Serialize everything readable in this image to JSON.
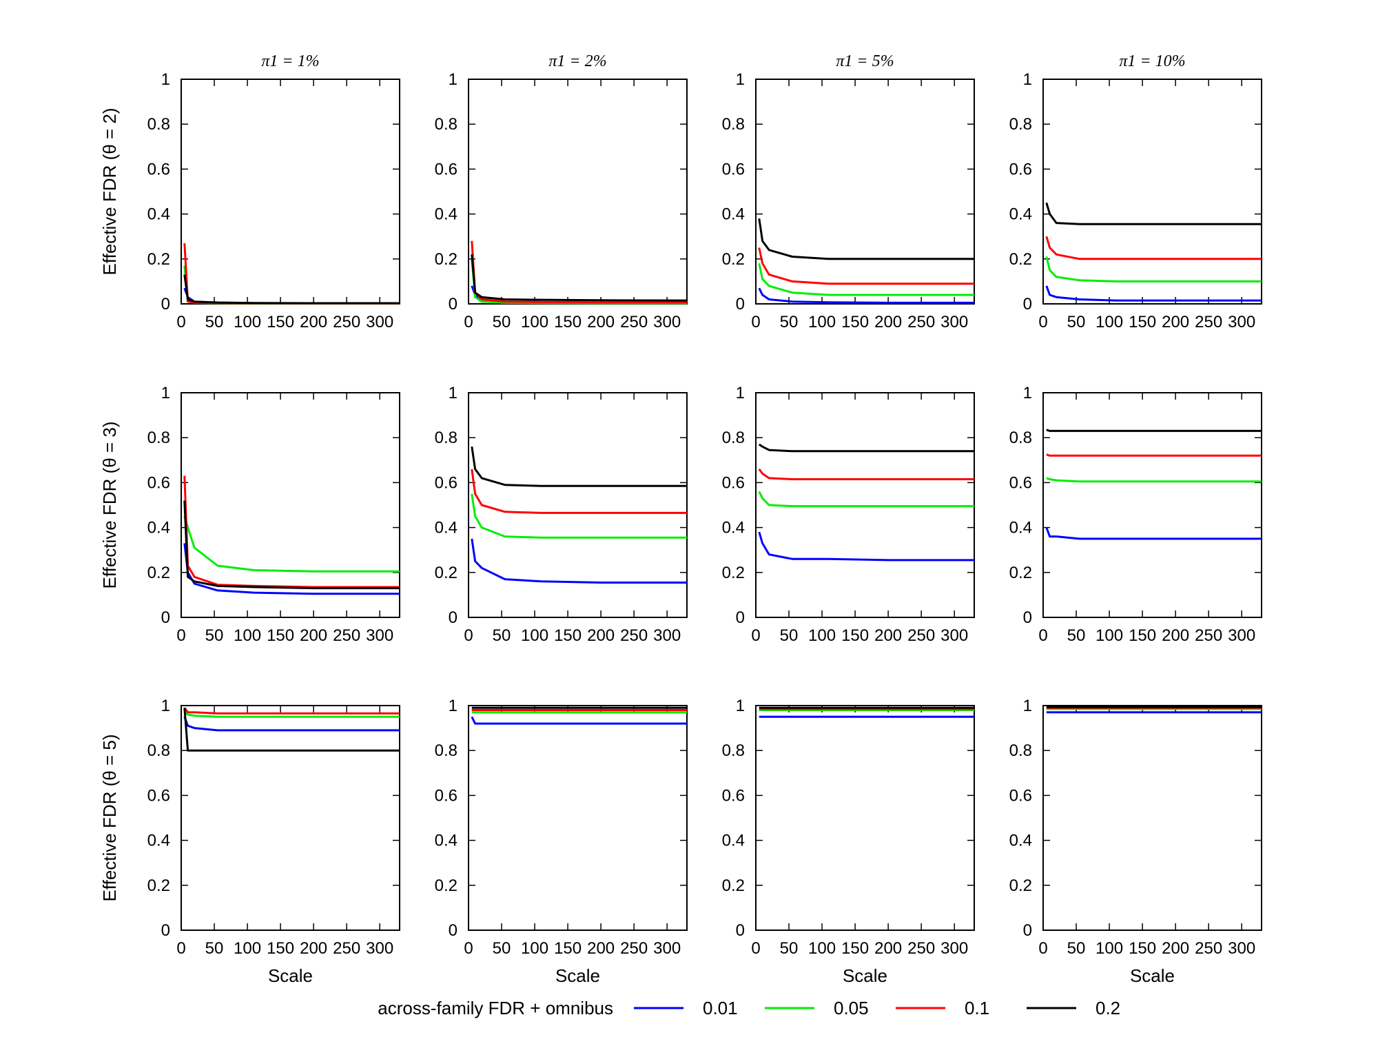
{
  "chart_data": {
    "type": "line",
    "layout": "grid 3 rows x 4 columns",
    "column_titles": [
      "π1 = 1%",
      "π1 = 2%",
      "π1 = 5%",
      "π1 = 10%"
    ],
    "row_ylabels": [
      "Effective FDR (θ = 2)",
      "Effective FDR (θ = 3)",
      "Effective FDR (θ = 5)"
    ],
    "xlabel": "Scale",
    "xlim": [
      0,
      330
    ],
    "ylim": [
      0,
      1
    ],
    "xticks": [
      "0",
      "50",
      "100",
      "150",
      "200",
      "250",
      "300"
    ],
    "yticks": [
      "0",
      "0.2",
      "0.4",
      "0.6",
      "0.8",
      "1"
    ],
    "legend": {
      "title": "across-family FDR + omnibus",
      "entries": [
        {
          "name": "0.01",
          "color": "#0000ff"
        },
        {
          "name": "0.05",
          "color": "#00ee00"
        },
        {
          "name": "0.1",
          "color": "#ff0000"
        },
        {
          "name": "0.2",
          "color": "#000000"
        }
      ]
    },
    "x": [
      5,
      10,
      20,
      55,
      110,
      200,
      330
    ],
    "panels": [
      {
        "row": 0,
        "col": 0,
        "series": [
          {
            "name": "0.01",
            "values": [
              0.07,
              0.03,
              0.01,
              0.005,
              0.003,
              0.002,
              0.002
            ]
          },
          {
            "name": "0.05",
            "values": [
              0.17,
              0.01,
              0.005,
              0.003,
              0.002,
              0.002,
              0.002
            ]
          },
          {
            "name": "0.1",
            "values": [
              0.27,
              0.01,
              0.005,
              0.004,
              0.003,
              0.002,
              0.002
            ]
          },
          {
            "name": "0.2",
            "values": [
              0.13,
              0.02,
              0.01,
              0.006,
              0.004,
              0.003,
              0.003
            ]
          }
        ]
      },
      {
        "row": 0,
        "col": 1,
        "series": [
          {
            "name": "0.01",
            "values": [
              0.08,
              0.04,
              0.02,
              0.01,
              0.008,
              0.006,
              0.006
            ]
          },
          {
            "name": "0.05",
            "values": [
              0.2,
              0.03,
              0.01,
              0.005,
              0.004,
              0.003,
              0.003
            ]
          },
          {
            "name": "0.1",
            "values": [
              0.28,
              0.05,
              0.02,
              0.01,
              0.008,
              0.007,
              0.007
            ]
          },
          {
            "name": "0.2",
            "values": [
              0.22,
              0.05,
              0.03,
              0.02,
              0.018,
              0.016,
              0.015
            ]
          }
        ]
      },
      {
        "row": 0,
        "col": 2,
        "series": [
          {
            "name": "0.01",
            "values": [
              0.07,
              0.04,
              0.02,
              0.01,
              0.007,
              0.005,
              0.005
            ]
          },
          {
            "name": "0.05",
            "values": [
              0.18,
              0.11,
              0.08,
              0.05,
              0.04,
              0.04,
              0.04
            ]
          },
          {
            "name": "0.1",
            "values": [
              0.25,
              0.18,
              0.13,
              0.1,
              0.09,
              0.09,
              0.09
            ]
          },
          {
            "name": "0.2",
            "values": [
              0.38,
              0.28,
              0.24,
              0.21,
              0.2,
              0.2,
              0.2
            ]
          }
        ]
      },
      {
        "row": 0,
        "col": 3,
        "series": [
          {
            "name": "0.01",
            "values": [
              0.08,
              0.04,
              0.03,
              0.02,
              0.015,
              0.015,
              0.015
            ]
          },
          {
            "name": "0.05",
            "values": [
              0.21,
              0.15,
              0.12,
              0.105,
              0.1,
              0.1,
              0.1
            ]
          },
          {
            "name": "0.1",
            "values": [
              0.3,
              0.25,
              0.22,
              0.2,
              0.2,
              0.2,
              0.2
            ]
          },
          {
            "name": "0.2",
            "values": [
              0.45,
              0.4,
              0.36,
              0.355,
              0.355,
              0.355,
              0.355
            ]
          }
        ]
      },
      {
        "row": 1,
        "col": 0,
        "series": [
          {
            "name": "0.01",
            "values": [
              0.33,
              0.2,
              0.15,
              0.12,
              0.11,
              0.105,
              0.105
            ]
          },
          {
            "name": "0.05",
            "values": [
              0.45,
              0.4,
              0.31,
              0.23,
              0.21,
              0.205,
              0.205
            ]
          },
          {
            "name": "0.1",
            "values": [
              0.63,
              0.23,
              0.18,
              0.145,
              0.14,
              0.135,
              0.135
            ]
          },
          {
            "name": "0.2",
            "values": [
              0.52,
              0.18,
              0.16,
              0.14,
              0.135,
              0.13,
              0.13
            ]
          }
        ]
      },
      {
        "row": 1,
        "col": 1,
        "series": [
          {
            "name": "0.01",
            "values": [
              0.35,
              0.25,
              0.22,
              0.17,
              0.16,
              0.155,
              0.155
            ]
          },
          {
            "name": "0.05",
            "values": [
              0.55,
              0.45,
              0.4,
              0.36,
              0.355,
              0.355,
              0.355
            ]
          },
          {
            "name": "0.1",
            "values": [
              0.66,
              0.55,
              0.5,
              0.47,
              0.465,
              0.465,
              0.465
            ]
          },
          {
            "name": "0.2",
            "values": [
              0.76,
              0.66,
              0.62,
              0.59,
              0.585,
              0.585,
              0.585
            ]
          }
        ]
      },
      {
        "row": 1,
        "col": 2,
        "series": [
          {
            "name": "0.01",
            "values": [
              0.38,
              0.33,
              0.28,
              0.26,
              0.26,
              0.255,
              0.255
            ]
          },
          {
            "name": "0.05",
            "values": [
              0.56,
              0.53,
              0.5,
              0.495,
              0.495,
              0.495,
              0.495
            ]
          },
          {
            "name": "0.1",
            "values": [
              0.66,
              0.64,
              0.62,
              0.615,
              0.615,
              0.615,
              0.615
            ]
          },
          {
            "name": "0.2",
            "values": [
              0.77,
              0.76,
              0.745,
              0.74,
              0.74,
              0.74,
              0.74
            ]
          }
        ]
      },
      {
        "row": 1,
        "col": 3,
        "series": [
          {
            "name": "0.01",
            "values": [
              0.4,
              0.36,
              0.36,
              0.35,
              0.35,
              0.35,
              0.35
            ]
          },
          {
            "name": "0.05",
            "values": [
              0.62,
              0.615,
              0.61,
              0.605,
              0.605,
              0.605,
              0.605
            ]
          },
          {
            "name": "0.1",
            "values": [
              0.725,
              0.72,
              0.72,
              0.72,
              0.72,
              0.72,
              0.72
            ]
          },
          {
            "name": "0.2",
            "values": [
              0.835,
              0.83,
              0.83,
              0.83,
              0.83,
              0.83,
              0.83
            ]
          }
        ]
      },
      {
        "row": 2,
        "col": 0,
        "series": [
          {
            "name": "0.01",
            "values": [
              0.95,
              0.91,
              0.9,
              0.89,
              0.89,
              0.89,
              0.89
            ]
          },
          {
            "name": "0.05",
            "values": [
              0.97,
              0.96,
              0.955,
              0.95,
              0.95,
              0.95,
              0.95
            ]
          },
          {
            "name": "0.1",
            "values": [
              0.99,
              0.97,
              0.97,
              0.965,
              0.965,
              0.965,
              0.965
            ]
          },
          {
            "name": "0.2",
            "values": [
              0.99,
              0.8,
              0.8,
              0.8,
              0.8,
              0.8,
              0.8
            ]
          }
        ]
      },
      {
        "row": 2,
        "col": 1,
        "series": [
          {
            "name": "0.01",
            "values": [
              0.95,
              0.92,
              0.92,
              0.92,
              0.92,
              0.92,
              0.92
            ]
          },
          {
            "name": "0.05",
            "values": [
              0.97,
              0.97,
              0.97,
              0.97,
              0.97,
              0.97,
              0.97
            ]
          },
          {
            "name": "0.1",
            "values": [
              0.98,
              0.98,
              0.98,
              0.98,
              0.98,
              0.98,
              0.98
            ]
          },
          {
            "name": "0.2",
            "values": [
              0.99,
              0.99,
              0.99,
              0.99,
              0.99,
              0.99,
              0.99
            ]
          }
        ]
      },
      {
        "row": 2,
        "col": 2,
        "series": [
          {
            "name": "0.01",
            "values": [
              0.95,
              0.95,
              0.95,
              0.95,
              0.95,
              0.95,
              0.95
            ]
          },
          {
            "name": "0.05",
            "values": [
              0.98,
              0.98,
              0.98,
              0.98,
              0.98,
              0.98,
              0.98
            ]
          },
          {
            "name": "0.1",
            "values": [
              0.985,
              0.985,
              0.985,
              0.985,
              0.985,
              0.985,
              0.985
            ]
          },
          {
            "name": "0.2",
            "values": [
              0.99,
              0.99,
              0.99,
              0.99,
              0.99,
              0.99,
              0.99
            ]
          }
        ]
      },
      {
        "row": 2,
        "col": 3,
        "series": [
          {
            "name": "0.01",
            "values": [
              0.97,
              0.97,
              0.97,
              0.97,
              0.97,
              0.97,
              0.97
            ]
          },
          {
            "name": "0.05",
            "values": [
              0.985,
              0.985,
              0.985,
              0.985,
              0.985,
              0.985,
              0.985
            ]
          },
          {
            "name": "0.1",
            "values": [
              0.99,
              0.99,
              0.99,
              0.99,
              0.99,
              0.99,
              0.99
            ]
          },
          {
            "name": "0.2",
            "values": [
              0.993,
              0.993,
              0.993,
              0.993,
              0.993,
              0.993,
              0.993
            ]
          }
        ]
      }
    ]
  }
}
